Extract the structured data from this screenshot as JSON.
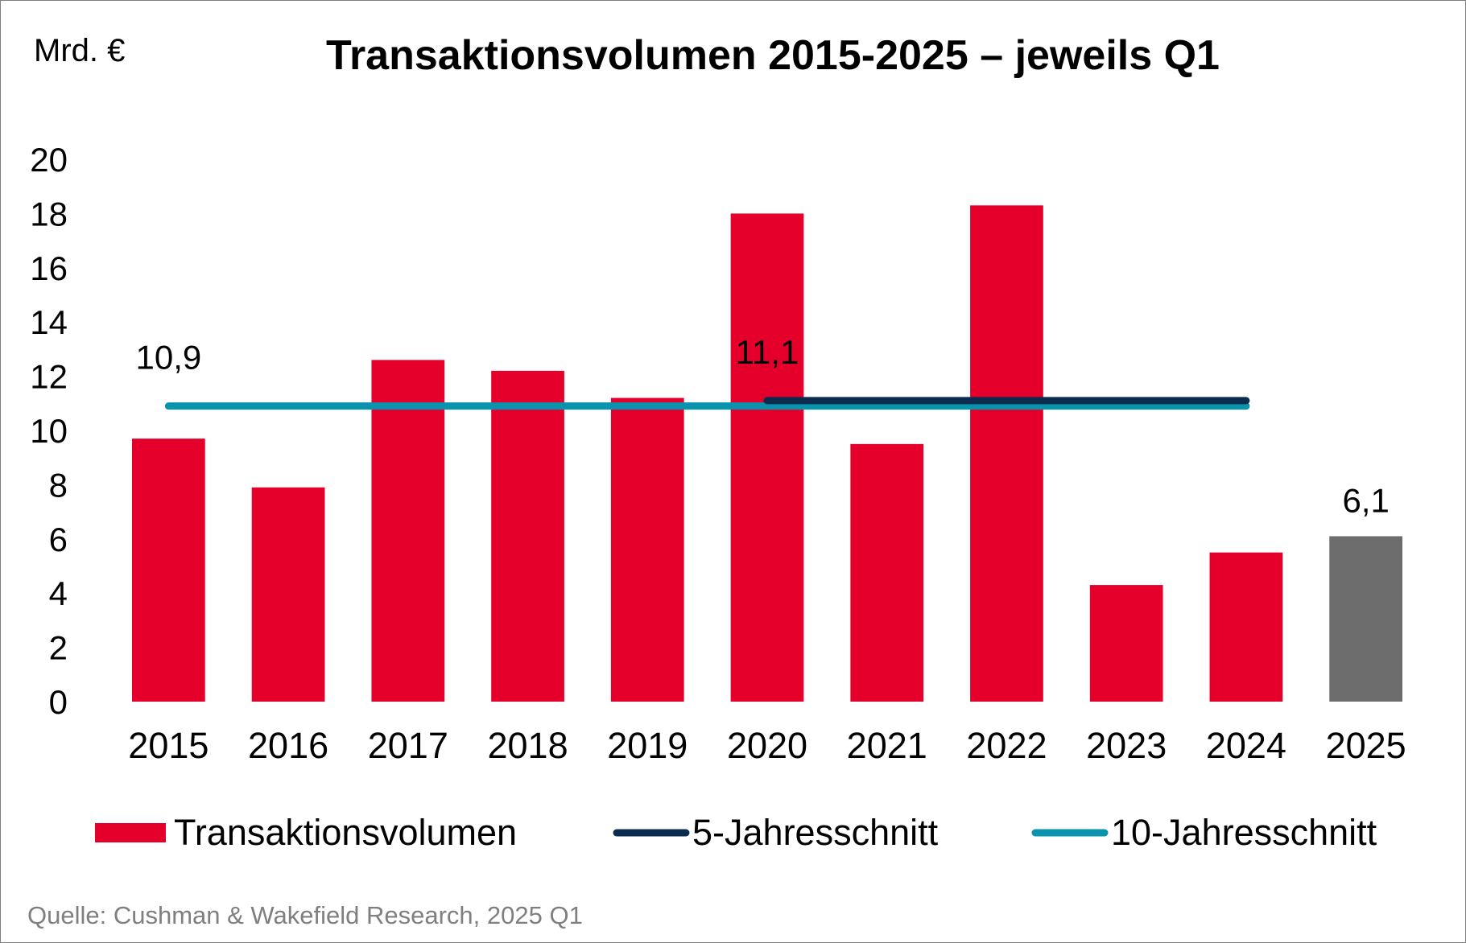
{
  "chart_data": {
    "type": "bar",
    "title": "Transaktionsvolumen 2015-2025 – jeweils Q1",
    "ylabel": "Mrd. €",
    "xlabel": "",
    "ylim": [
      0,
      20
    ],
    "yticks": [
      "0",
      "2",
      "4",
      "6",
      "8",
      "10",
      "12",
      "14",
      "16",
      "18",
      "20"
    ],
    "categories": [
      "2015",
      "2016",
      "2017",
      "2018",
      "2019",
      "2020",
      "2021",
      "2022",
      "2023",
      "2024",
      "2025"
    ],
    "series": [
      {
        "name": "Transaktionsvolumen",
        "type": "bar",
        "values": [
          9.7,
          7.9,
          12.6,
          12.2,
          11.2,
          18.0,
          9.5,
          18.3,
          4.3,
          5.5,
          6.1
        ],
        "color": "#e4002b",
        "highlight_color": "#6d6d6d",
        "highlight_index": 10
      },
      {
        "name": "5-Jahresschnitt",
        "type": "line",
        "value": 11.1,
        "from": "2020",
        "to": "2024",
        "color": "#0c2c4f"
      },
      {
        "name": "10-Jahresschnitt",
        "type": "line",
        "value": 10.9,
        "from": "2015",
        "to": "2024",
        "color": "#0a93ad"
      }
    ],
    "annotations": [
      {
        "text": "10,9",
        "category": "2015",
        "value": 10.9
      },
      {
        "text": "11,1",
        "category": "2020",
        "value": 11.1
      },
      {
        "text": "6,1",
        "category": "2025",
        "value": 6.1
      }
    ],
    "legend": [
      "Transaktionsvolumen",
      "5-Jahresschnitt",
      "10-Jahresschnitt"
    ],
    "legend_position": "bottom",
    "grid": false
  },
  "source": "Quelle: Cushman & Wakefield Research, 2025 Q1"
}
